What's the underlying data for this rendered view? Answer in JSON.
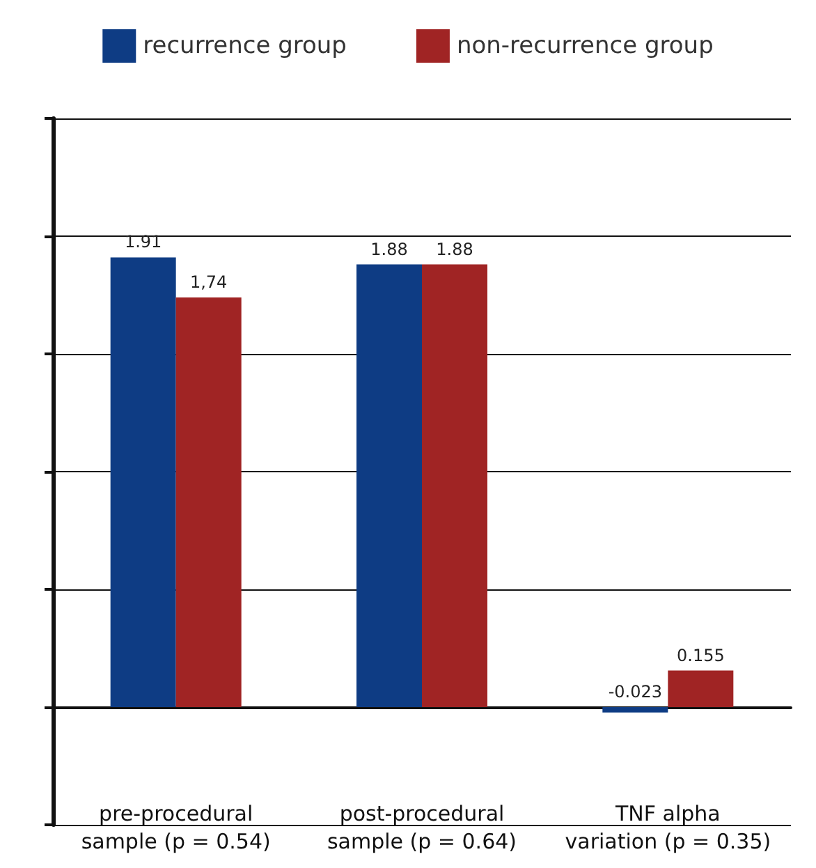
{
  "chart_data": {
    "type": "bar",
    "categories": [
      "pre-procedural\nsample (p = 0.54)",
      "post-procedural\nsample (p = 0.64)",
      "TNF alpha\nvariation (p = 0.35)"
    ],
    "series": [
      {
        "name": "recurrence group",
        "color": "#0e3c84",
        "values": [
          1.91,
          1.88,
          -0.023
        ],
        "value_labels": [
          "1.91",
          "1.88",
          "-0.023"
        ]
      },
      {
        "name": "non-recurrence group",
        "color": "#a02424",
        "values": [
          1.74,
          1.88,
          0.155
        ],
        "value_labels": [
          "1,74",
          "1.88",
          "0.155"
        ]
      }
    ],
    "ylim": [
      -0.5,
      2.5
    ],
    "yticks": [
      {
        "value": -0.5,
        "label": null
      },
      {
        "value": 0,
        "label": null
      },
      {
        "value": 0.5,
        "label": null
      },
      {
        "value": 1,
        "label": null
      },
      {
        "value": 1.5,
        "label": null
      },
      {
        "value": 2,
        "label": null
      },
      {
        "value": 2.5,
        "label": null
      }
    ],
    "tick_labels": "x",
    "grid": "y",
    "legend": "top"
  }
}
